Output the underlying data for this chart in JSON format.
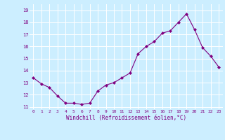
{
  "x": [
    0,
    1,
    2,
    3,
    4,
    5,
    6,
    7,
    8,
    9,
    10,
    11,
    12,
    13,
    14,
    15,
    16,
    17,
    18,
    19,
    20,
    21,
    22,
    23
  ],
  "y": [
    13.4,
    12.9,
    12.6,
    11.9,
    11.3,
    11.3,
    11.2,
    11.3,
    12.3,
    12.8,
    13.0,
    13.4,
    13.8,
    15.4,
    16.0,
    16.4,
    17.1,
    17.3,
    18.0,
    18.7,
    17.4,
    15.9,
    15.2,
    14.3
  ],
  "line_color": "#800080",
  "marker": "D",
  "marker_size": 2.0,
  "bg_color": "#cceeff",
  "grid_color": "#ffffff",
  "xlabel": "Windchill (Refroidissement éolien,°C)",
  "xlabel_color": "#800080",
  "tick_color": "#800080",
  "xlim": [
    -0.5,
    23.5
  ],
  "ylim": [
    10.8,
    19.5
  ],
  "yticks": [
    11,
    12,
    13,
    14,
    15,
    16,
    17,
    18,
    19
  ],
  "xticks": [
    0,
    1,
    2,
    3,
    4,
    5,
    6,
    7,
    8,
    9,
    10,
    11,
    12,
    13,
    14,
    15,
    16,
    17,
    18,
    19,
    20,
    21,
    22,
    23
  ]
}
